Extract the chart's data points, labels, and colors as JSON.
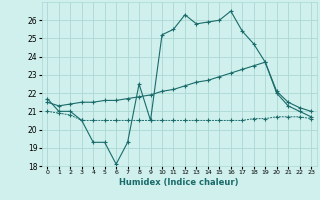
{
  "xlabel": "Humidex (Indice chaleur)",
  "bg_color": "#cff0ec",
  "grid_color": "#aad8d4",
  "line_color": "#1a6b6b",
  "xlim": [
    -0.5,
    23.5
  ],
  "ylim": [
    18,
    27
  ],
  "yticks": [
    18,
    19,
    20,
    21,
    22,
    23,
    24,
    25,
    26
  ],
  "xticks": [
    0,
    1,
    2,
    3,
    4,
    5,
    6,
    7,
    8,
    9,
    10,
    11,
    12,
    13,
    14,
    15,
    16,
    17,
    18,
    19,
    20,
    21,
    22,
    23
  ],
  "series1_x": [
    0,
    1,
    2,
    3,
    4,
    5,
    6,
    7,
    8,
    9,
    10,
    11,
    12,
    13,
    14,
    15,
    16,
    17,
    18,
    19,
    20,
    21,
    22,
    23
  ],
  "series1_y": [
    21.7,
    21.0,
    21.0,
    20.5,
    19.3,
    19.3,
    18.1,
    19.3,
    22.5,
    20.5,
    25.2,
    25.5,
    26.3,
    25.8,
    25.9,
    26.0,
    26.5,
    25.4,
    24.7,
    23.7,
    22.0,
    21.3,
    21.0,
    20.7
  ],
  "series2_x": [
    0,
    1,
    2,
    3,
    4,
    5,
    6,
    7,
    8,
    9,
    10,
    11,
    12,
    13,
    14,
    15,
    16,
    17,
    18,
    19,
    20,
    21,
    22,
    23
  ],
  "series2_y": [
    21.5,
    21.3,
    21.4,
    21.5,
    21.5,
    21.6,
    21.6,
    21.7,
    21.8,
    21.9,
    22.1,
    22.2,
    22.4,
    22.6,
    22.7,
    22.9,
    23.1,
    23.3,
    23.5,
    23.7,
    22.1,
    21.5,
    21.2,
    21.0
  ],
  "series3_x": [
    0,
    1,
    2,
    3,
    4,
    5,
    6,
    7,
    8,
    9,
    10,
    11,
    12,
    13,
    14,
    15,
    16,
    17,
    18,
    19,
    20,
    21,
    22,
    23
  ],
  "series3_y": [
    21.0,
    20.9,
    20.8,
    20.5,
    20.5,
    20.5,
    20.5,
    20.5,
    20.5,
    20.5,
    20.5,
    20.5,
    20.5,
    20.5,
    20.5,
    20.5,
    20.5,
    20.5,
    20.6,
    20.6,
    20.7,
    20.7,
    20.7,
    20.6
  ]
}
